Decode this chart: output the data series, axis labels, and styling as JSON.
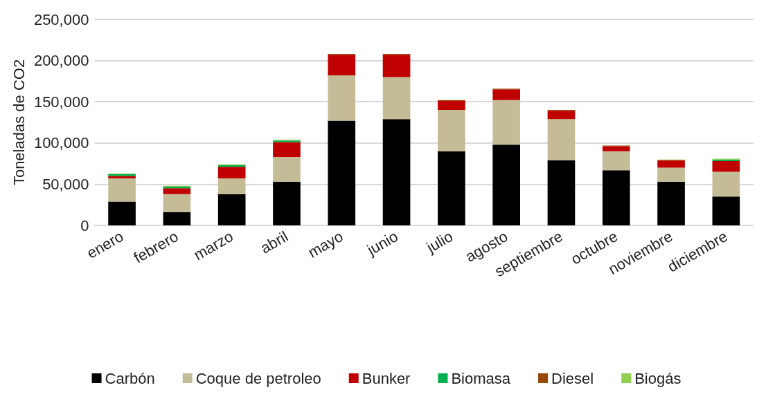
{
  "chart_data": {
    "type": "bar",
    "stacked": true,
    "ylabel": "Toneladas de CO2",
    "categories": [
      "enero",
      "febrero",
      "marzo",
      "abril",
      "mayo",
      "junio",
      "julio",
      "agosto",
      "septiembre",
      "octubre",
      "noviembre",
      "diciembre"
    ],
    "series": [
      {
        "name": "Carbón",
        "color": "#000000",
        "values": [
          29000,
          16000,
          38000,
          53000,
          127000,
          129000,
          90000,
          98000,
          79000,
          67000,
          53000,
          35000
        ]
      },
      {
        "name": "Coque de petroleo",
        "color": "#c4bc96",
        "values": [
          28000,
          22000,
          19000,
          30000,
          55000,
          51000,
          50000,
          54000,
          50000,
          23000,
          17000,
          30000
        ]
      },
      {
        "name": "Bunker",
        "color": "#c00000",
        "values": [
          3000,
          7000,
          14000,
          18000,
          25000,
          27000,
          11000,
          13000,
          10000,
          6000,
          9000,
          13000
        ]
      },
      {
        "name": "Biomasa",
        "color": "#00b050",
        "values": [
          2000,
          2000,
          2000,
          2000,
          0,
          0,
          0,
          0,
          0,
          0,
          0,
          2000
        ]
      },
      {
        "name": "Diesel",
        "color": "#984807",
        "values": [
          0,
          0,
          0,
          0,
          1000,
          1000,
          1000,
          1000,
          1000,
          1000,
          0,
          0
        ]
      },
      {
        "name": "Biogás",
        "color": "#92d050",
        "values": [
          1000,
          1000,
          1000,
          1000,
          0,
          0,
          0,
          0,
          0,
          0,
          1000,
          1000
        ]
      }
    ],
    "ylim": [
      0,
      250000
    ],
    "yticks": [
      0,
      {
        "value": 50000,
        "label": "50,000"
      },
      {
        "value": 100000,
        "label": "100,000"
      },
      {
        "value": 150000,
        "label": "150,000"
      },
      {
        "value": 200000,
        "label": "200,000"
      },
      {
        "value": 250000,
        "label": "250,000"
      }
    ],
    "grid": "y",
    "legend": "bottom"
  }
}
